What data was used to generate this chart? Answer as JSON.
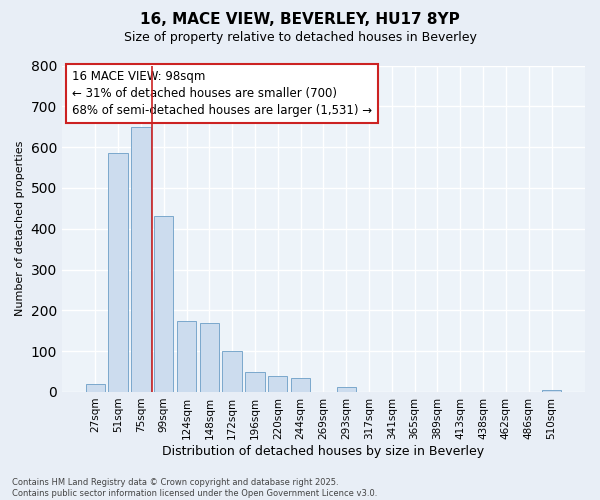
{
  "title": "16, MACE VIEW, BEVERLEY, HU17 8YP",
  "subtitle": "Size of property relative to detached houses in Beverley",
  "xlabel": "Distribution of detached houses by size in Beverley",
  "ylabel": "Number of detached properties",
  "categories": [
    "27sqm",
    "51sqm",
    "75sqm",
    "99sqm",
    "124sqm",
    "148sqm",
    "172sqm",
    "196sqm",
    "220sqm",
    "244sqm",
    "269sqm",
    "293sqm",
    "317sqm",
    "341sqm",
    "365sqm",
    "389sqm",
    "413sqm",
    "438sqm",
    "462sqm",
    "486sqm",
    "510sqm"
  ],
  "values": [
    20,
    585,
    650,
    430,
    175,
    170,
    100,
    50,
    40,
    33,
    0,
    12,
    0,
    0,
    0,
    0,
    0,
    0,
    0,
    0,
    5
  ],
  "bar_color": "#ccdcee",
  "bar_edge_color": "#7aa8cc",
  "red_line_x": 2.5,
  "annotation_line1": "16 MACE VIEW: 98sqm",
  "annotation_line2": "← 31% of detached houses are smaller (700)",
  "annotation_line3": "68% of semi-detached houses are larger (1,531) →",
  "annotation_box_color": "#ffffff",
  "annotation_box_edge_color": "#cc2222",
  "footer_text": "Contains HM Land Registry data © Crown copyright and database right 2025.\nContains public sector information licensed under the Open Government Licence v3.0.",
  "bg_color": "#e8eef6",
  "plot_bg_color": "#edf3f9",
  "grid_color": "#ffffff",
  "ylim_max": 800,
  "title_fontsize": 11,
  "subtitle_fontsize": 9,
  "tick_fontsize": 7.5,
  "ylabel_fontsize": 8,
  "xlabel_fontsize": 9,
  "footer_fontsize": 6,
  "annotation_fontsize": 8.5
}
